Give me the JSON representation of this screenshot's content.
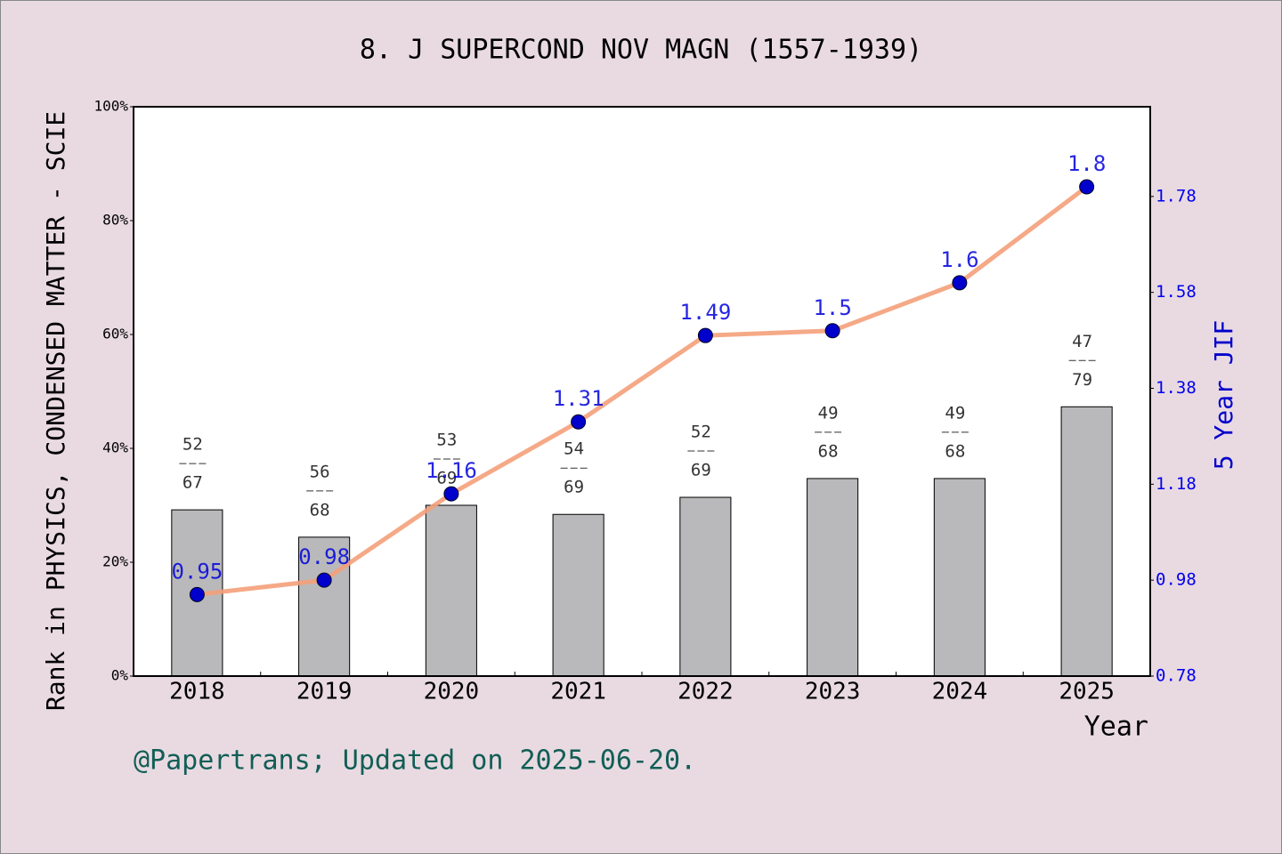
{
  "chart_data": {
    "type": "bar",
    "title": "8. J SUPERCOND NOV MAGN (1557-1939)",
    "x_label": "Year",
    "y_label": "Rank in PHYSICS, CONDENSED MATTER - SCIE",
    "y2_label": "5 Year JIF",
    "footer": "@Papertrans; Updated on 2025-06-20.",
    "categories": [
      "2018",
      "2019",
      "2020",
      "2021",
      "2022",
      "2023",
      "2024",
      "2025"
    ],
    "ylim": [
      0,
      100
    ],
    "yticks": [
      {
        "value": 0,
        "label": "0%"
      },
      {
        "value": 20,
        "label": "20%"
      },
      {
        "value": 40,
        "label": "40%"
      },
      {
        "value": 60,
        "label": "60%"
      },
      {
        "value": 80,
        "label": "80%"
      },
      {
        "value": 100,
        "label": "100%"
      }
    ],
    "y2lim": [
      0.78,
      1.967
    ],
    "y2ticks": [
      0.78,
      0.98,
      1.18,
      1.38,
      1.58,
      1.78
    ],
    "series": [
      {
        "name": "Rank percentile",
        "type": "bar",
        "color": "#b9b9bb",
        "values": [
          29.2,
          24.4,
          30.0,
          28.4,
          31.4,
          34.7,
          34.7,
          47.3
        ],
        "rank_labels": [
          "52",
          "56",
          "53",
          "54",
          "52",
          "49",
          "49",
          "47"
        ],
        "total_labels": [
          "67",
          "68",
          "69",
          "69",
          "69",
          "68",
          "68",
          "79"
        ]
      },
      {
        "name": "5 Year JIF",
        "type": "line",
        "axis": "y2",
        "color": "#f4a07a",
        "marker_color": "#0000cc",
        "values": [
          0.95,
          0.98,
          1.16,
          1.31,
          1.49,
          1.5,
          1.6,
          1.8
        ]
      }
    ]
  }
}
